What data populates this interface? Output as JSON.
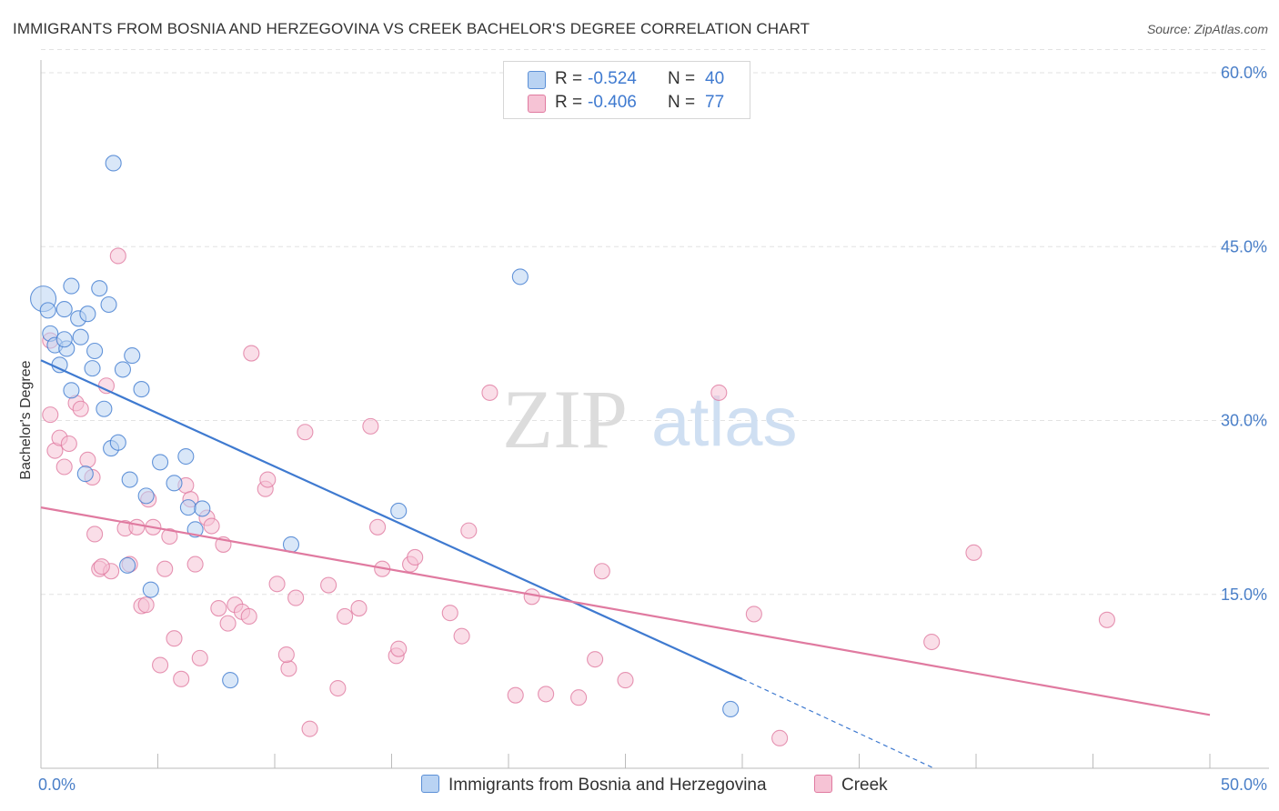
{
  "title": "IMMIGRANTS FROM BOSNIA AND HERZEGOVINA VS CREEK BACHELOR'S DEGREE CORRELATION CHART",
  "source": "Source: ZipAtlas.com",
  "watermark": {
    "zip": "ZIP",
    "atlas": "atlas"
  },
  "legend": {
    "r_label": "R =",
    "n_label": "N =",
    "rows": [
      {
        "name": "Immigrants from Bosnia and Herzegovina",
        "r": "-0.524",
        "n": "40",
        "color": "#5b8fd6",
        "fill": "#b9d3f3"
      },
      {
        "name": "Creek",
        "r": "-0.406",
        "n": "77",
        "color": "#e07aa0",
        "fill": "#f6c3d5"
      }
    ]
  },
  "chart_data": {
    "type": "scatter",
    "title": "IMMIGRANTS FROM BOSNIA AND HERZEGOVINA VS CREEK BACHELOR'S DEGREE CORRELATION CHART",
    "xlabel": "",
    "ylabel": "Bachelor's Degree",
    "xlim": [
      0,
      50
    ],
    "ylim": [
      0,
      62
    ],
    "x_tick_labels": [
      "0.0%",
      "50.0%"
    ],
    "y_ticks": [
      15,
      30,
      45,
      60
    ],
    "y_tick_labels": [
      "15.0%",
      "30.0%",
      "45.0%",
      "60.0%"
    ],
    "grid": true,
    "series": [
      {
        "name": "Immigrants from Bosnia and Herzegovina",
        "color": "#3f7ad0",
        "fill": "#b9d3f3",
        "points": [
          [
            0.1,
            40.5
          ],
          [
            0.3,
            39.5
          ],
          [
            0.4,
            37.5
          ],
          [
            0.6,
            36.5
          ],
          [
            0.8,
            34.8
          ],
          [
            1.1,
            36.2
          ],
          [
            1.3,
            41.6
          ],
          [
            1.0,
            39.6
          ],
          [
            1.0,
            37.0
          ],
          [
            1.3,
            32.6
          ],
          [
            1.6,
            38.8
          ],
          [
            1.7,
            37.2
          ],
          [
            2.0,
            39.2
          ],
          [
            2.2,
            34.5
          ],
          [
            2.3,
            36.0
          ],
          [
            2.5,
            41.4
          ],
          [
            2.7,
            31.0
          ],
          [
            2.9,
            40.0
          ],
          [
            3.1,
            52.2
          ],
          [
            3.0,
            27.6
          ],
          [
            3.3,
            28.1
          ],
          [
            3.5,
            34.4
          ],
          [
            3.8,
            24.9
          ],
          [
            3.9,
            35.6
          ],
          [
            4.3,
            32.7
          ],
          [
            4.5,
            23.5
          ],
          [
            4.7,
            15.4
          ],
          [
            5.1,
            26.4
          ],
          [
            5.7,
            24.6
          ],
          [
            6.2,
            26.9
          ],
          [
            6.3,
            22.5
          ],
          [
            6.6,
            20.6
          ],
          [
            6.9,
            22.4
          ],
          [
            8.1,
            7.6
          ],
          [
            1.9,
            25.4
          ],
          [
            3.7,
            17.5
          ],
          [
            10.7,
            19.3
          ],
          [
            15.3,
            22.2
          ],
          [
            20.5,
            42.4
          ],
          [
            29.5,
            5.1
          ]
        ],
        "trend": {
          "x": [
            0,
            30
          ],
          "y": [
            35.2,
            7.7
          ],
          "dashed_to": [
            38.2,
            0
          ]
        }
      },
      {
        "name": "Creek",
        "color": "#e07aa0",
        "fill": "#f6c3d5",
        "points": [
          [
            0.4,
            36.9
          ],
          [
            0.4,
            30.5
          ],
          [
            0.6,
            27.4
          ],
          [
            0.8,
            28.5
          ],
          [
            1.0,
            26.0
          ],
          [
            1.2,
            28.0
          ],
          [
            1.5,
            31.5
          ],
          [
            1.7,
            31.0
          ],
          [
            2.0,
            26.6
          ],
          [
            2.2,
            25.1
          ],
          [
            2.3,
            20.2
          ],
          [
            2.5,
            17.2
          ],
          [
            2.8,
            33.0
          ],
          [
            3.0,
            17.0
          ],
          [
            3.3,
            44.2
          ],
          [
            3.6,
            20.7
          ],
          [
            3.8,
            17.6
          ],
          [
            4.1,
            20.8
          ],
          [
            4.3,
            14.0
          ],
          [
            4.5,
            14.1
          ],
          [
            4.6,
            23.2
          ],
          [
            4.8,
            20.8
          ],
          [
            5.1,
            8.9
          ],
          [
            5.3,
            17.2
          ],
          [
            5.5,
            20.0
          ],
          [
            5.7,
            11.2
          ],
          [
            6.0,
            7.7
          ],
          [
            6.2,
            24.4
          ],
          [
            6.4,
            23.2
          ],
          [
            6.6,
            17.6
          ],
          [
            6.8,
            9.5
          ],
          [
            7.1,
            21.6
          ],
          [
            7.3,
            20.9
          ],
          [
            7.6,
            13.8
          ],
          [
            7.8,
            19.3
          ],
          [
            8.0,
            12.5
          ],
          [
            8.3,
            14.1
          ],
          [
            8.6,
            13.5
          ],
          [
            8.9,
            13.1
          ],
          [
            9.0,
            35.8
          ],
          [
            9.6,
            24.1
          ],
          [
            9.7,
            24.9
          ],
          [
            10.1,
            15.9
          ],
          [
            10.6,
            8.6
          ],
          [
            10.5,
            9.8
          ],
          [
            10.9,
            14.7
          ],
          [
            11.3,
            29.0
          ],
          [
            11.5,
            3.4
          ],
          [
            12.3,
            15.8
          ],
          [
            12.7,
            6.9
          ],
          [
            13.0,
            13.1
          ],
          [
            13.6,
            13.8
          ],
          [
            14.1,
            29.5
          ],
          [
            14.4,
            20.8
          ],
          [
            14.6,
            17.2
          ],
          [
            15.2,
            9.7
          ],
          [
            15.3,
            10.3
          ],
          [
            15.8,
            17.6
          ],
          [
            16.0,
            18.2
          ],
          [
            17.5,
            13.4
          ],
          [
            18.0,
            11.4
          ],
          [
            18.3,
            20.5
          ],
          [
            19.2,
            32.4
          ],
          [
            20.3,
            6.3
          ],
          [
            21.0,
            14.8
          ],
          [
            21.6,
            6.4
          ],
          [
            23.0,
            6.1
          ],
          [
            23.7,
            9.4
          ],
          [
            24.0,
            17.0
          ],
          [
            25.0,
            7.6
          ],
          [
            29.0,
            32.4
          ],
          [
            30.5,
            13.3
          ],
          [
            31.6,
            2.6
          ],
          [
            38.1,
            10.9
          ],
          [
            39.9,
            18.6
          ],
          [
            45.6,
            12.8
          ],
          [
            2.6,
            17.4
          ]
        ],
        "trend": {
          "x": [
            0,
            50
          ],
          "y": [
            22.5,
            4.6
          ]
        }
      }
    ]
  }
}
